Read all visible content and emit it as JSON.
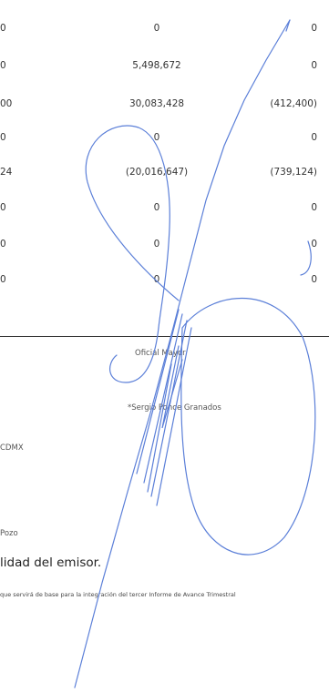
{
  "table": {
    "rows": [
      {
        "c1": "0",
        "c2": "0",
        "c3": "0"
      },
      {
        "c1": "0",
        "c2": "5,498,672",
        "c3": "0"
      },
      {
        "c1": "00",
        "c2": "30,083,428",
        "c3": "(412,400)"
      },
      {
        "c1": "0",
        "c2": "0",
        "c3": "0"
      },
      {
        "c1": "24",
        "c2": "(20,016,647)",
        "c3": "(739,124)"
      },
      {
        "c1": "0",
        "c2": "0",
        "c3": "0"
      },
      {
        "c1": "0",
        "c2": "0",
        "c3": "0"
      },
      {
        "c1": "0",
        "c2": "0",
        "c3": "0"
      }
    ]
  },
  "signature_block": {
    "title": "Oficial Mayor",
    "name": "*Sergio Ponce Granados"
  },
  "left_fragments": {
    "org": "CDMX",
    "person": "Pozo"
  },
  "footer": {
    "title": "lidad del emisor.",
    "note": "que servirá de base para la integración del tercer Informe de Avance Trimestral"
  },
  "colors": {
    "ink": "#5b7fd8",
    "text": "#333333"
  }
}
